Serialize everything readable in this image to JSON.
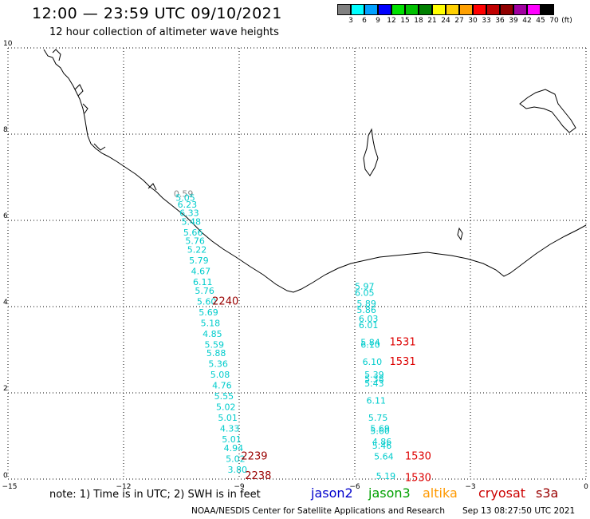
{
  "header": {
    "title": "12:00 — 23:59 UTC 09/10/2021",
    "subtitle": "12 hour collection of altimeter wave heights"
  },
  "legend": {
    "unit": "(ft)",
    "colors": [
      "#808080",
      "#00ffff",
      "#00a0ff",
      "#0000ff",
      "#00e000",
      "#00c000",
      "#008000",
      "#ffff00",
      "#ffd000",
      "#ffa000",
      "#ff0000",
      "#c00000",
      "#900000",
      "#a000a0",
      "#ff00ff",
      "#000000"
    ],
    "labels": [
      "3",
      "6",
      "9",
      "12",
      "15",
      "18",
      "21",
      "24",
      "27",
      "30",
      "33",
      "36",
      "39",
      "42",
      "45",
      "70"
    ]
  },
  "map": {
    "x_axis": {
      "range": [
        -15,
        0
      ],
      "ticks": [
        -15,
        -12,
        -9,
        -6,
        -3,
        0
      ],
      "tick_labels": [
        "−15",
        "−12",
        "−9",
        "−6",
        "−3",
        "0"
      ]
    },
    "y_axis": {
      "range": [
        0,
        10
      ],
      "ticks": [
        0,
        2,
        4,
        6,
        8,
        10
      ],
      "tick_labels": [
        "0",
        "2",
        "4",
        "6",
        "8",
        "10"
      ]
    },
    "grid": true,
    "colors": {
      "low": "#00cccc",
      "mid": "#888888",
      "high": "#990000",
      "red": "#dd0000"
    }
  },
  "observations": {
    "track_a": [
      {
        "lon": -10.7,
        "lat": 6.55,
        "swh": "0.59"
      },
      {
        "lon": -10.65,
        "lat": 6.45,
        "swh": "5.05"
      },
      {
        "lon": -10.6,
        "lat": 6.3,
        "swh": "6.23"
      },
      {
        "lon": -10.55,
        "lat": 6.1,
        "swh": "6.33"
      },
      {
        "lon": -10.5,
        "lat": 5.9,
        "swh": "5.48"
      },
      {
        "lon": -10.45,
        "lat": 5.65,
        "swh": "5.66"
      },
      {
        "lon": -10.4,
        "lat": 5.45,
        "swh": "5.76"
      },
      {
        "lon": -10.35,
        "lat": 5.25,
        "swh": "5.22"
      },
      {
        "lon": -10.3,
        "lat": 5.0,
        "swh": "5.79"
      },
      {
        "lon": -10.25,
        "lat": 4.75,
        "swh": "4.67"
      },
      {
        "lon": -10.2,
        "lat": 4.5,
        "swh": "6.11"
      },
      {
        "lon": -10.15,
        "lat": 4.3,
        "swh": "5.76"
      },
      {
        "lon": -10.1,
        "lat": 4.05,
        "swh": "5.60"
      },
      {
        "lon": -10.05,
        "lat": 3.8,
        "swh": "5.69"
      },
      {
        "lon": -10.0,
        "lat": 3.55,
        "swh": "5.18"
      },
      {
        "lon": -9.95,
        "lat": 3.3,
        "swh": "4.85"
      },
      {
        "lon": -9.9,
        "lat": 3.05,
        "swh": "5.59"
      },
      {
        "lon": -9.85,
        "lat": 2.85,
        "swh": "5.88"
      },
      {
        "lon": -9.8,
        "lat": 2.6,
        "swh": "5.36"
      },
      {
        "lon": -9.75,
        "lat": 2.35,
        "swh": "5.08"
      },
      {
        "lon": -9.7,
        "lat": 2.1,
        "swh": "4.76"
      },
      {
        "lon": -9.65,
        "lat": 1.85,
        "swh": "5.55"
      },
      {
        "lon": -9.6,
        "lat": 1.6,
        "swh": "5.02"
      },
      {
        "lon": -9.55,
        "lat": 1.35,
        "swh": "5.01"
      },
      {
        "lon": -9.5,
        "lat": 1.1,
        "swh": "4.33"
      },
      {
        "lon": -9.45,
        "lat": 0.85,
        "swh": "5.01"
      },
      {
        "lon": -9.4,
        "lat": 0.65,
        "swh": "4.94"
      },
      {
        "lon": -9.35,
        "lat": 0.4,
        "swh": "5.02"
      },
      {
        "lon": -9.3,
        "lat": 0.15,
        "swh": "3.80"
      }
    ],
    "track_b": [
      {
        "lon": -6.0,
        "lat": 4.4,
        "swh": "5.97"
      },
      {
        "lon": -6.0,
        "lat": 4.25,
        "swh": "6.05"
      },
      {
        "lon": -5.95,
        "lat": 4.0,
        "swh": "5.89"
      },
      {
        "lon": -5.95,
        "lat": 3.85,
        "swh": "5.86"
      },
      {
        "lon": -5.9,
        "lat": 3.65,
        "swh": "6.03"
      },
      {
        "lon": -5.9,
        "lat": 3.5,
        "swh": "6.01"
      },
      {
        "lon": -5.85,
        "lat": 3.1,
        "swh": "5.84"
      },
      {
        "lon": -5.85,
        "lat": 3.05,
        "swh": "6.10"
      },
      {
        "lon": -5.8,
        "lat": 2.65,
        "swh": "6.10"
      },
      {
        "lon": -5.75,
        "lat": 2.35,
        "swh": "5.39"
      },
      {
        "lon": -5.75,
        "lat": 2.25,
        "swh": "5.38"
      },
      {
        "lon": -5.75,
        "lat": 2.15,
        "swh": "5.43"
      },
      {
        "lon": -5.7,
        "lat": 1.75,
        "swh": "6.11"
      },
      {
        "lon": -5.65,
        "lat": 1.35,
        "swh": "5.75"
      },
      {
        "lon": -5.6,
        "lat": 1.1,
        "swh": "5.69"
      },
      {
        "lon": -5.6,
        "lat": 1.05,
        "swh": "5.60"
      },
      {
        "lon": -5.55,
        "lat": 0.8,
        "swh": "4.86"
      },
      {
        "lon": -5.55,
        "lat": 0.7,
        "swh": "5.46"
      },
      {
        "lon": -5.5,
        "lat": 0.45,
        "swh": "5.64"
      },
      {
        "lon": -5.45,
        "lat": 0.0,
        "swh": "5.19"
      }
    ],
    "passes": [
      {
        "label": "2240",
        "lon": -9.7,
        "lat": 4.05,
        "color": "high"
      },
      {
        "label": "2239",
        "lon": -8.95,
        "lat": 0.45,
        "color": "high"
      },
      {
        "label": "2238",
        "lon": -8.85,
        "lat": 0.0,
        "color": "high"
      },
      {
        "label": "1531",
        "lon": -5.1,
        "lat": 3.1,
        "color": "red"
      },
      {
        "label": "1531",
        "lon": -5.1,
        "lat": 2.65,
        "color": "red"
      },
      {
        "label": "1530",
        "lon": -4.7,
        "lat": 0.45,
        "color": "red"
      },
      {
        "label": "1530",
        "lon": -4.7,
        "lat": -0.05,
        "color": "red"
      }
    ]
  },
  "footer": {
    "note": "note:  1) Time is in UTC; 2) SWH is in feet",
    "satellites": [
      {
        "name": "jason2",
        "color": "#0000cc"
      },
      {
        "name": "jason3",
        "color": "#00a000"
      },
      {
        "name": "altika",
        "color": "#ff9900"
      },
      {
        "name": "cryosat",
        "color": "#cc0000"
      },
      {
        "name": "s3a",
        "color": "#990000"
      }
    ],
    "credit": "NOAA/NESDIS Center for Satellite Applications and Research",
    "timestamp": "Sep 13 08:27:50 UTC 2021"
  }
}
